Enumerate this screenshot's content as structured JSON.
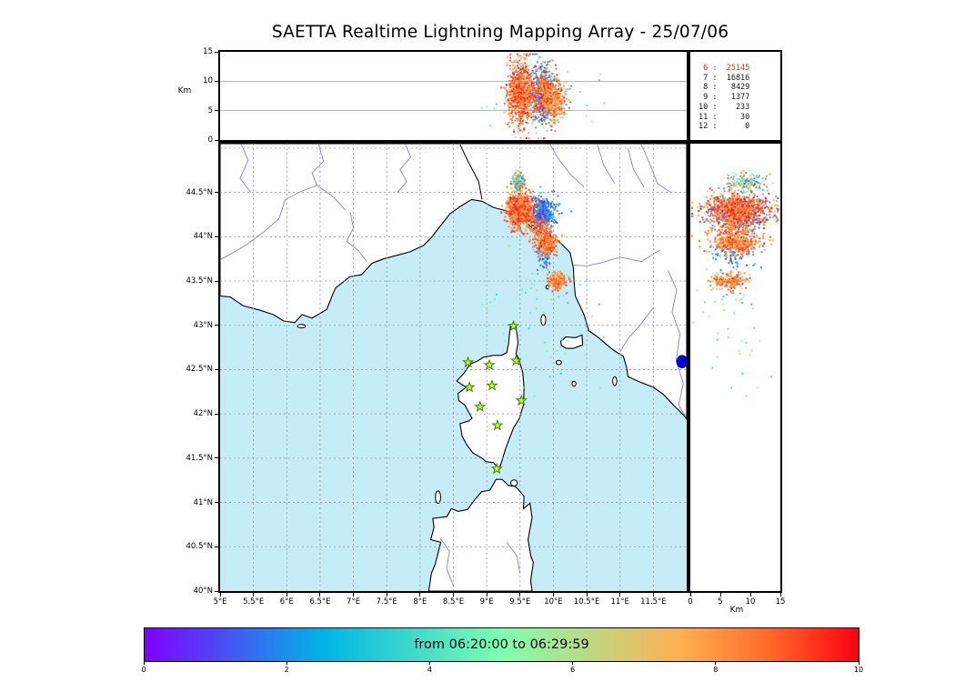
{
  "colors": {
    "sea": "#c6ecf7",
    "land": "#ffffff",
    "coast": "#000000",
    "river": "#8585d0",
    "grid": "#999999",
    "lake": "#0000cc",
    "station_fill": "#b4ff37",
    "station_stroke": "#4a7d00",
    "count_highlight": "#e03020",
    "count_normal": "#1a1a1a"
  },
  "chart_data": {
    "type": "scatter",
    "title": "SAETTA Realtime Lightning Mapping Array - 25/07/06",
    "time_window_label": "from 06:20:00 to 06:29:59",
    "altitude_axis": {
      "label": "Km",
      "lim": [
        0,
        15
      ],
      "ticks": [
        0,
        5,
        10,
        15
      ],
      "gridlines": [
        5,
        10
      ]
    },
    "right_axis": {
      "label": "Km",
      "lim": [
        0,
        15
      ],
      "ticks": [
        0,
        5,
        10,
        15
      ]
    },
    "map": {
      "lon_lim": [
        5,
        12.0
      ],
      "lat_lim": [
        40,
        45.05
      ],
      "lon_ticks": [
        {
          "v": 5,
          "label": "5°E"
        },
        {
          "v": 5.5,
          "label": "5.5°E"
        },
        {
          "v": 6,
          "label": "6°E"
        },
        {
          "v": 6.5,
          "label": "6.5°E"
        },
        {
          "v": 7,
          "label": "7°E"
        },
        {
          "v": 7.5,
          "label": "7.5°E"
        },
        {
          "v": 8,
          "label": "8°E"
        },
        {
          "v": 8.5,
          "label": "8.5°E"
        },
        {
          "v": 9,
          "label": "9°E"
        },
        {
          "v": 9.5,
          "label": "9.5°E"
        },
        {
          "v": 10,
          "label": "10°E"
        },
        {
          "v": 10.5,
          "label": "10.5°E"
        },
        {
          "v": 11,
          "label": "11°E"
        },
        {
          "v": 11.5,
          "label": "11.5°E"
        }
      ],
      "lat_ticks": [
        {
          "v": 40,
          "label": "40°N"
        },
        {
          "v": 40.5,
          "label": "40.5°N"
        },
        {
          "v": 41,
          "label": "41°N"
        },
        {
          "v": 41.5,
          "label": "41.5°N"
        },
        {
          "v": 42,
          "label": "42°N"
        },
        {
          "v": 42.5,
          "label": "42.5°N"
        },
        {
          "v": 43,
          "label": "43°N"
        },
        {
          "v": 43.5,
          "label": "43.5°N"
        },
        {
          "v": 44,
          "label": "44°N"
        },
        {
          "v": 44.5,
          "label": "44.5°N"
        }
      ]
    },
    "colorbar": {
      "lim": [
        0,
        10
      ],
      "ticks": [
        0,
        2,
        4,
        6,
        8,
        10
      ],
      "stops": [
        {
          "p": 0,
          "c": "#8000ff"
        },
        {
          "p": 0.25,
          "c": "#00b4e6"
        },
        {
          "p": 0.5,
          "c": "#7dffb2"
        },
        {
          "p": 0.75,
          "c": "#ffb050"
        },
        {
          "p": 0.875,
          "c": "#ff6a28"
        },
        {
          "p": 1,
          "c": "#ff0010"
        }
      ]
    },
    "source_counts": [
      {
        "level": 6,
        "count": 25145,
        "highlight": true
      },
      {
        "level": 7,
        "count": 16816,
        "highlight": false
      },
      {
        "level": 8,
        "count": 8429,
        "highlight": false
      },
      {
        "level": 9,
        "count": 1377,
        "highlight": false
      },
      {
        "level": 10,
        "count": 233,
        "highlight": false
      },
      {
        "level": 11,
        "count": 30,
        "highlight": false
      },
      {
        "level": 12,
        "count": 0,
        "highlight": false
      }
    ],
    "stations_lonlat": [
      [
        9.4,
        42.99
      ],
      [
        8.72,
        42.58
      ],
      [
        9.04,
        42.55
      ],
      [
        9.44,
        42.6
      ],
      [
        8.74,
        42.3
      ],
      [
        9.08,
        42.32
      ],
      [
        9.52,
        42.15
      ],
      [
        8.9,
        42.08
      ],
      [
        9.16,
        41.87
      ],
      [
        9.15,
        41.38
      ]
    ],
    "clusters": [
      {
        "name": "sparse-sea",
        "n": 60,
        "lon": [
          9.8,
          0.4
        ],
        "lat": [
          43.15,
          0.45
        ],
        "alt": [
          7,
          3.0
        ],
        "t": [
          0.3,
          0.65
        ]
      },
      {
        "name": "mid-early",
        "n": 70,
        "lon": [
          9.86,
          0.05
        ],
        "lat": [
          43.77,
          0.07
        ],
        "alt": [
          7,
          2.0
        ],
        "t": [
          0.05,
          0.3
        ]
      },
      {
        "name": "genoa-early",
        "n": 420,
        "lon": [
          9.84,
          0.09
        ],
        "lat": [
          44.27,
          0.09
        ],
        "alt": [
          8,
          2.3
        ],
        "t": [
          0.02,
          0.3
        ]
      },
      {
        "name": "north-mixed",
        "n": 130,
        "lon": [
          9.47,
          0.05
        ],
        "lat": [
          44.62,
          0.05
        ],
        "alt": [
          9,
          2.0
        ],
        "t": [
          0.15,
          0.95
        ]
      },
      {
        "name": "streak",
        "n": 120,
        "lon": [
          9.78,
          0.08
        ],
        "lat": [
          44.08,
          0.08
        ],
        "alt": [
          7.5,
          2.0
        ],
        "t": [
          0.75,
          0.95
        ]
      },
      {
        "name": "spezia-late",
        "n": 380,
        "lon": [
          9.9,
          0.07
        ],
        "lat": [
          43.92,
          0.06
        ],
        "alt": [
          7.5,
          2.2
        ],
        "t": [
          0.7,
          0.97
        ]
      },
      {
        "name": "tuscany-late",
        "n": 220,
        "lon": [
          10.06,
          0.07
        ],
        "lat": [
          43.5,
          0.045
        ],
        "alt": [
          6.5,
          1.6
        ],
        "t": [
          0.7,
          0.95
        ]
      },
      {
        "name": "genoa-late",
        "n": 850,
        "lon": [
          9.5,
          0.1
        ],
        "lat": [
          44.3,
          0.09
        ],
        "alt": [
          8,
          2.6
        ],
        "t": [
          0.72,
          1.0
        ]
      }
    ],
    "geo": {
      "mainland": [
        [
          5.0,
          43.33
        ],
        [
          5.15,
          43.32
        ],
        [
          5.35,
          43.22
        ],
        [
          5.6,
          43.17
        ],
        [
          5.8,
          43.12
        ],
        [
          5.95,
          43.05
        ],
        [
          6.12,
          43.03
        ],
        [
          6.23,
          43.12
        ],
        [
          6.38,
          43.08
        ],
        [
          6.6,
          43.18
        ],
        [
          6.68,
          43.33
        ],
        [
          6.73,
          43.42
        ],
        [
          6.95,
          43.55
        ],
        [
          7.12,
          43.57
        ],
        [
          7.28,
          43.7
        ],
        [
          7.45,
          43.75
        ],
        [
          7.65,
          43.79
        ],
        [
          7.85,
          43.83
        ],
        [
          8.05,
          43.9
        ],
        [
          8.17,
          43.99
        ],
        [
          8.25,
          44.07
        ],
        [
          8.45,
          44.26
        ],
        [
          8.6,
          44.34
        ],
        [
          8.77,
          44.42
        ],
        [
          8.93,
          44.4
        ],
        [
          9.1,
          44.33
        ],
        [
          9.3,
          44.29
        ],
        [
          9.51,
          44.22
        ],
        [
          9.68,
          44.1
        ],
        [
          9.83,
          44.04
        ],
        [
          9.98,
          44.0
        ],
        [
          10.12,
          43.92
        ],
        [
          10.25,
          43.82
        ],
        [
          10.3,
          43.65
        ],
        [
          10.31,
          43.5
        ],
        [
          10.33,
          43.33
        ],
        [
          10.46,
          43.12
        ],
        [
          10.53,
          42.94
        ],
        [
          10.68,
          42.86
        ],
        [
          10.77,
          42.8
        ],
        [
          10.9,
          42.72
        ],
        [
          11.05,
          42.65
        ],
        [
          11.1,
          42.52
        ],
        [
          11.12,
          42.42
        ],
        [
          11.3,
          42.36
        ],
        [
          11.5,
          42.3
        ],
        [
          11.65,
          42.22
        ],
        [
          11.8,
          42.1
        ],
        [
          11.95,
          41.99
        ],
        [
          12.0,
          41.94
        ],
        [
          12.0,
          45.05
        ],
        [
          5.0,
          45.05
        ]
      ],
      "corsica": [
        [
          9.36,
          43.01
        ],
        [
          9.44,
          42.98
        ],
        [
          9.47,
          42.8
        ],
        [
          9.44,
          42.68
        ],
        [
          9.48,
          42.62
        ],
        [
          9.54,
          42.47
        ],
        [
          9.56,
          42.3
        ],
        [
          9.55,
          42.1
        ],
        [
          9.49,
          41.95
        ],
        [
          9.4,
          41.84
        ],
        [
          9.33,
          41.7
        ],
        [
          9.28,
          41.6
        ],
        [
          9.19,
          41.38
        ],
        [
          9.1,
          41.45
        ],
        [
          8.99,
          41.46
        ],
        [
          8.93,
          41.5
        ],
        [
          8.79,
          41.56
        ],
        [
          8.7,
          41.65
        ],
        [
          8.63,
          41.75
        ],
        [
          8.6,
          41.89
        ],
        [
          8.73,
          41.92
        ],
        [
          8.78,
          41.95
        ],
        [
          8.67,
          42.1
        ],
        [
          8.58,
          42.15
        ],
        [
          8.57,
          42.23
        ],
        [
          8.69,
          42.3
        ],
        [
          8.55,
          42.37
        ],
        [
          8.66,
          42.46
        ],
        [
          8.75,
          42.56
        ],
        [
          8.87,
          42.6
        ],
        [
          8.95,
          42.64
        ],
        [
          9.1,
          42.66
        ],
        [
          9.22,
          42.66
        ],
        [
          9.3,
          42.69
        ],
        [
          9.33,
          42.8
        ],
        [
          9.34,
          42.9
        ]
      ],
      "sardinia": [
        [
          8.13,
          40.0
        ],
        [
          8.17,
          40.2
        ],
        [
          8.23,
          40.31
        ],
        [
          8.31,
          40.55
        ],
        [
          8.16,
          40.58
        ],
        [
          8.21,
          40.72
        ],
        [
          8.19,
          40.82
        ],
        [
          8.4,
          40.84
        ],
        [
          8.47,
          40.93
        ],
        [
          8.57,
          40.9
        ],
        [
          8.71,
          40.92
        ],
        [
          8.83,
          41.04
        ],
        [
          8.92,
          41.12
        ],
        [
          9.05,
          41.14
        ],
        [
          9.14,
          41.26
        ],
        [
          9.23,
          41.26
        ],
        [
          9.33,
          41.19
        ],
        [
          9.43,
          41.18
        ],
        [
          9.47,
          41.15
        ],
        [
          9.56,
          41.07
        ],
        [
          9.55,
          40.93
        ],
        [
          9.65,
          40.99
        ],
        [
          9.68,
          40.83
        ],
        [
          9.62,
          40.58
        ],
        [
          9.66,
          40.4
        ],
        [
          9.7,
          40.32
        ],
        [
          9.66,
          40.12
        ],
        [
          9.68,
          40.0
        ]
      ],
      "elba": [
        [
          10.11,
          42.82
        ],
        [
          10.19,
          42.87
        ],
        [
          10.33,
          42.86
        ],
        [
          10.43,
          42.89
        ],
        [
          10.44,
          42.78
        ],
        [
          10.3,
          42.74
        ],
        [
          10.19,
          42.74
        ],
        [
          10.12,
          42.77
        ]
      ],
      "islands": [
        [
          9.85,
          43.06,
          0.035,
          0.06
        ],
        [
          9.91,
          43.43,
          0.022,
          0.022
        ],
        [
          10.08,
          42.58,
          0.04,
          0.025
        ],
        [
          10.31,
          42.34,
          0.028,
          0.028
        ],
        [
          10.92,
          42.37,
          0.03,
          0.05
        ],
        [
          8.27,
          41.06,
          0.04,
          0.07
        ],
        [
          9.41,
          41.22,
          0.05,
          0.035
        ],
        [
          6.22,
          42.99,
          0.06,
          0.02
        ]
      ],
      "lakes": [
        [
          11.93,
          42.59,
          0.085,
          0.075
        ]
      ],
      "borders": [
        [
          [
            8.6,
            45.04
          ],
          [
            8.72,
            44.85
          ],
          [
            8.88,
            44.62
          ],
          [
            8.93,
            44.42
          ]
        ]
      ],
      "rivers": [
        [
          [
            6.48,
            45.04
          ],
          [
            6.55,
            44.85
          ],
          [
            6.38,
            44.72
          ],
          [
            6.45,
            44.58
          ],
          [
            6.18,
            44.5
          ],
          [
            5.98,
            44.42
          ],
          [
            5.88,
            44.2
          ],
          [
            5.65,
            44.05
          ],
          [
            5.38,
            43.9
          ],
          [
            5.1,
            43.78
          ],
          [
            5.0,
            43.74
          ]
        ],
        [
          [
            6.45,
            44.58
          ],
          [
            6.7,
            44.45
          ],
          [
            6.88,
            44.3
          ]
        ],
        [
          [
            6.95,
            44.28
          ],
          [
            7.0,
            44.1
          ],
          [
            6.9,
            43.95
          ],
          [
            7.08,
            43.84
          ],
          [
            7.2,
            43.72
          ]
        ],
        [
          [
            7.78,
            45.04
          ],
          [
            7.86,
            44.9
          ],
          [
            7.7,
            44.76
          ],
          [
            7.8,
            44.62
          ],
          [
            7.66,
            44.5
          ]
        ],
        [
          [
            5.32,
            45.04
          ],
          [
            5.42,
            44.86
          ],
          [
            5.3,
            44.66
          ],
          [
            5.46,
            44.5
          ]
        ],
        [
          [
            9.95,
            45.04
          ],
          [
            10.1,
            44.85
          ],
          [
            10.26,
            44.7
          ],
          [
            10.46,
            44.56
          ]
        ],
        [
          [
            10.66,
            45.04
          ],
          [
            10.76,
            44.8
          ],
          [
            10.92,
            44.6
          ]
        ],
        [
          [
            11.12,
            45.0
          ],
          [
            11.2,
            44.76
          ],
          [
            11.36,
            44.56
          ]
        ],
        [
          [
            11.32,
            45.04
          ],
          [
            11.46,
            44.8
          ],
          [
            11.56,
            44.6
          ],
          [
            11.76,
            44.5
          ]
        ],
        [
          [
            11.6,
            43.85
          ],
          [
            11.32,
            43.72
          ],
          [
            11.0,
            43.77
          ],
          [
            10.74,
            43.71
          ],
          [
            10.5,
            43.67
          ],
          [
            10.3,
            43.68
          ]
        ],
        [
          [
            11.72,
            43.62
          ],
          [
            11.85,
            43.4
          ],
          [
            11.78,
            43.15
          ],
          [
            11.9,
            42.9
          ],
          [
            11.84,
            42.6
          ],
          [
            11.95,
            42.35
          ],
          [
            11.88,
            42.1
          ],
          [
            11.99,
            41.96
          ]
        ],
        [
          [
            11.5,
            43.2
          ],
          [
            11.3,
            43.0
          ],
          [
            11.12,
            42.85
          ],
          [
            11.0,
            42.7
          ]
        ],
        [
          [
            8.3,
            40.6
          ],
          [
            8.44,
            40.45
          ],
          [
            8.4,
            40.25
          ],
          [
            8.5,
            40.06
          ]
        ],
        [
          [
            9.3,
            40.55
          ],
          [
            9.45,
            40.4
          ],
          [
            9.5,
            40.2
          ]
        ]
      ]
    }
  }
}
